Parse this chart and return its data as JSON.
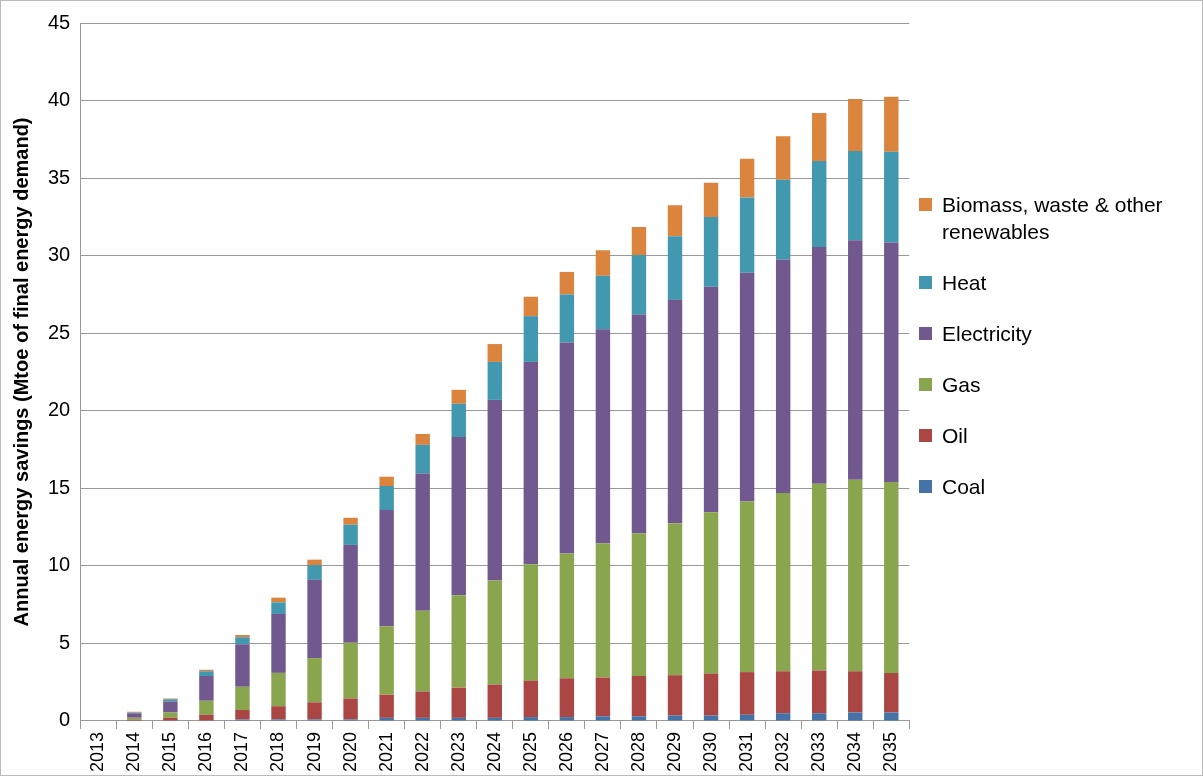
{
  "chart_data": {
    "type": "bar",
    "stacked": true,
    "ylabel": "Annual energy savings (Mtoe of final energy demand)",
    "categories": [
      "2013",
      "2014",
      "2015",
      "2016",
      "2017",
      "2018",
      "2019",
      "2020",
      "2021",
      "2022",
      "2023",
      "2024",
      "2025",
      "2026",
      "2027",
      "2028",
      "2029",
      "2030",
      "2031",
      "2032",
      "2033",
      "2034",
      "2035"
    ],
    "ylim": [
      0,
      45
    ],
    "yticks": [
      0,
      5,
      10,
      15,
      20,
      25,
      30,
      35,
      40,
      45
    ],
    "grid": "y",
    "legend": "right",
    "series": [
      {
        "name": "Coal",
        "color": "#4572a7",
        "values": [
          0,
          0,
          0,
          0,
          0.1,
          0.1,
          0.1,
          0.1,
          0.2,
          0.2,
          0.2,
          0.2,
          0.25,
          0.25,
          0.3,
          0.3,
          0.35,
          0.35,
          0.4,
          0.5,
          0.5,
          0.55,
          0.55
        ]
      },
      {
        "name": "Oil",
        "color": "#aa4643",
        "values": [
          0,
          0.1,
          0.2,
          0.4,
          0.6,
          0.85,
          1.1,
          1.35,
          1.5,
          1.7,
          1.95,
          2.15,
          2.35,
          2.5,
          2.5,
          2.6,
          2.6,
          2.7,
          2.75,
          2.7,
          2.75,
          2.65,
          2.55
        ]
      },
      {
        "name": "Gas",
        "color": "#89a54e",
        "values": [
          0,
          0.1,
          0.35,
          0.9,
          1.5,
          2.15,
          2.85,
          3.6,
          4.4,
          5.2,
          5.95,
          6.7,
          7.5,
          8.05,
          8.65,
          9.2,
          9.8,
          10.4,
          11.0,
          11.5,
          12.05,
          12.35,
          12.3
        ]
      },
      {
        "name": "Electricity",
        "color": "#71588f",
        "values": [
          0,
          0.3,
          0.7,
          1.6,
          2.75,
          3.8,
          5.05,
          6.3,
          7.5,
          8.85,
          10.2,
          11.65,
          13.05,
          13.6,
          13.8,
          14.1,
          14.4,
          14.55,
          14.75,
          15.05,
          15.25,
          15.45,
          15.45
        ]
      },
      {
        "name": "Heat",
        "color": "#4198af",
        "values": [
          0,
          0.05,
          0.15,
          0.3,
          0.45,
          0.75,
          0.95,
          1.3,
          1.55,
          1.85,
          2.15,
          2.45,
          2.95,
          3.1,
          3.45,
          3.85,
          4.1,
          4.5,
          4.85,
          5.15,
          5.55,
          5.75,
          5.85
        ]
      },
      {
        "name": "Biomass, waste & other renewables",
        "color": "#db843d",
        "values": [
          0,
          0.05,
          0.05,
          0.1,
          0.15,
          0.3,
          0.35,
          0.45,
          0.6,
          0.7,
          0.9,
          1.15,
          1.25,
          1.45,
          1.65,
          1.8,
          2.0,
          2.2,
          2.5,
          2.8,
          3.1,
          3.35,
          3.55
        ]
      }
    ]
  }
}
